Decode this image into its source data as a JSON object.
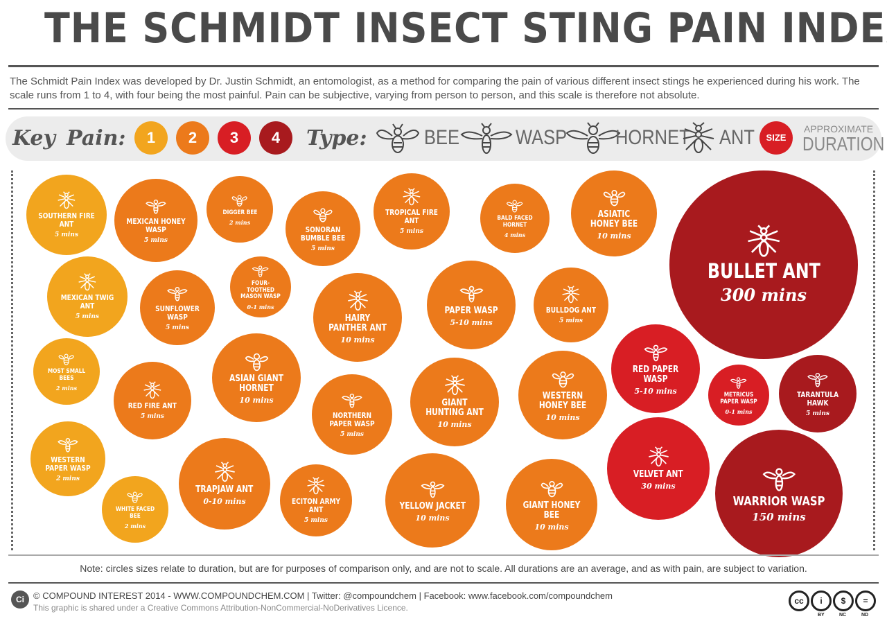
{
  "title": "THE SCHMIDT INSECT STING PAIN INDEX",
  "intro": "The Schmidt Pain Index was developed by Dr. Justin Schmidt, an entomologist, as a method for comparing the pain of various different insect stings he experienced during his work. The scale runs from 1 to 4, with four being the most painful. Pain can be subjective, varying from person to person, and this scale is therefore not absolute.",
  "key": {
    "key_label": "Key",
    "pain_label": "Pain:",
    "pain_levels": [
      "1",
      "2",
      "3",
      "4"
    ],
    "pain_colors": [
      "#f2a51e",
      "#ec7a1b",
      "#d81e24",
      "#a81a1e"
    ],
    "type_label": "Type:",
    "types": [
      "BEE",
      "WASP",
      "HORNET",
      "ANT"
    ],
    "type_icons": [
      "bee-icon",
      "wasp-icon",
      "hornet-icon",
      "ant-icon"
    ],
    "size_label": "SIZE",
    "duration_label_1": "APPROXIMATE",
    "duration_label_2": "DURATION"
  },
  "insects": [
    {
      "name": "SOUTHERN FIRE ANT",
      "duration": "5 mins",
      "pain": 1,
      "type": "ant"
    },
    {
      "name": "MEXICAN HONEY WASP",
      "duration": "5 mins",
      "pain": 2,
      "type": "wasp"
    },
    {
      "name": "DIGGER BEE",
      "duration": "2 mins",
      "pain": 2,
      "type": "bee"
    },
    {
      "name": "SONORAN BUMBLE BEE",
      "duration": "5 mins",
      "pain": 2,
      "type": "bee"
    },
    {
      "name": "TROPICAL FIRE ANT",
      "duration": "5 mins",
      "pain": 2,
      "type": "ant"
    },
    {
      "name": "BALD FACED HORNET",
      "duration": "4 mins",
      "pain": 2,
      "type": "hornet"
    },
    {
      "name": "ASIATIC HONEY BEE",
      "duration": "10 mins",
      "pain": 2,
      "type": "bee"
    },
    {
      "name": "BULLET ANT",
      "duration": "300 mins",
      "pain": 4,
      "type": "ant"
    },
    {
      "name": "MEXICAN TWIG ANT",
      "duration": "5 mins",
      "pain": 1,
      "type": "ant"
    },
    {
      "name": "SUNFLOWER WASP",
      "duration": "5 mins",
      "pain": 2,
      "type": "wasp"
    },
    {
      "name": "FOUR-TOOTHED MASON WASP",
      "duration": "0-1 mins",
      "pain": 2,
      "type": "wasp"
    },
    {
      "name": "HAIRY PANTHER ANT",
      "duration": "10 mins",
      "pain": 2,
      "type": "ant"
    },
    {
      "name": "PAPER WASP",
      "duration": "5-10 mins",
      "pain": 2,
      "type": "wasp"
    },
    {
      "name": "BULLDOG ANT",
      "duration": "5 mins",
      "pain": 2,
      "type": "ant"
    },
    {
      "name": "MOST SMALL BEES",
      "duration": "2 mins",
      "pain": 1,
      "type": "bee"
    },
    {
      "name": "RED FIRE ANT",
      "duration": "5 mins",
      "pain": 2,
      "type": "ant"
    },
    {
      "name": "ASIAN GIANT HORNET",
      "duration": "10 mins",
      "pain": 2,
      "type": "hornet"
    },
    {
      "name": "NORTHERN PAPER WASP",
      "duration": "5 mins",
      "pain": 2,
      "type": "wasp"
    },
    {
      "name": "GIANT HUNTING ANT",
      "duration": "10 mins",
      "pain": 2,
      "type": "ant"
    },
    {
      "name": "WESTERN HONEY BEE",
      "duration": "10 mins",
      "pain": 2,
      "type": "bee"
    },
    {
      "name": "RED PAPER WASP",
      "duration": "5-10 mins",
      "pain": 3,
      "type": "wasp"
    },
    {
      "name": "METRICUS PAPER WASP",
      "duration": "0-1 mins",
      "pain": 3,
      "type": "wasp"
    },
    {
      "name": "TARANTULA HAWK",
      "duration": "5 mins",
      "pain": 4,
      "type": "wasp"
    },
    {
      "name": "WESTERN PAPER WASP",
      "duration": "2 mins",
      "pain": 1,
      "type": "wasp"
    },
    {
      "name": "WHITE FACED BEE",
      "duration": "2 mins",
      "pain": 1,
      "type": "bee"
    },
    {
      "name": "TRAPJAW ANT",
      "duration": "0-10 mins",
      "pain": 2,
      "type": "ant"
    },
    {
      "name": "ECITON ARMY ANT",
      "duration": "5 mins",
      "pain": 2,
      "type": "ant"
    },
    {
      "name": "YELLOW JACKET",
      "duration": "10 mins",
      "pain": 2,
      "type": "wasp"
    },
    {
      "name": "GIANT HONEY BEE",
      "duration": "10 mins",
      "pain": 2,
      "type": "bee"
    },
    {
      "name": "VELVET ANT",
      "duration": "30 mins",
      "pain": 3,
      "type": "ant"
    },
    {
      "name": "WARRIOR WASP",
      "duration": "150 mins",
      "pain": 4,
      "type": "wasp"
    }
  ],
  "note": "Note: circles sizes relate to duration, but are for purposes of comparison only, and are not to scale. All durations are an average, and as with pain, are subject to variation.",
  "footer": {
    "logo": "Ci",
    "credit": "© COMPOUND INTEREST 2014 - WWW.COMPOUNDCHEM.COM | Twitter: @compoundchem | Facebook: www.facebook.com/compoundchem",
    "licence": "This graphic is shared under a Creative Commons Attribution-NonCommercial-NoDerivatives Licence.",
    "cc_badges": [
      "cc",
      "i",
      "$",
      "="
    ],
    "cc_labels": [
      "BY",
      "NC",
      "ND"
    ]
  }
}
